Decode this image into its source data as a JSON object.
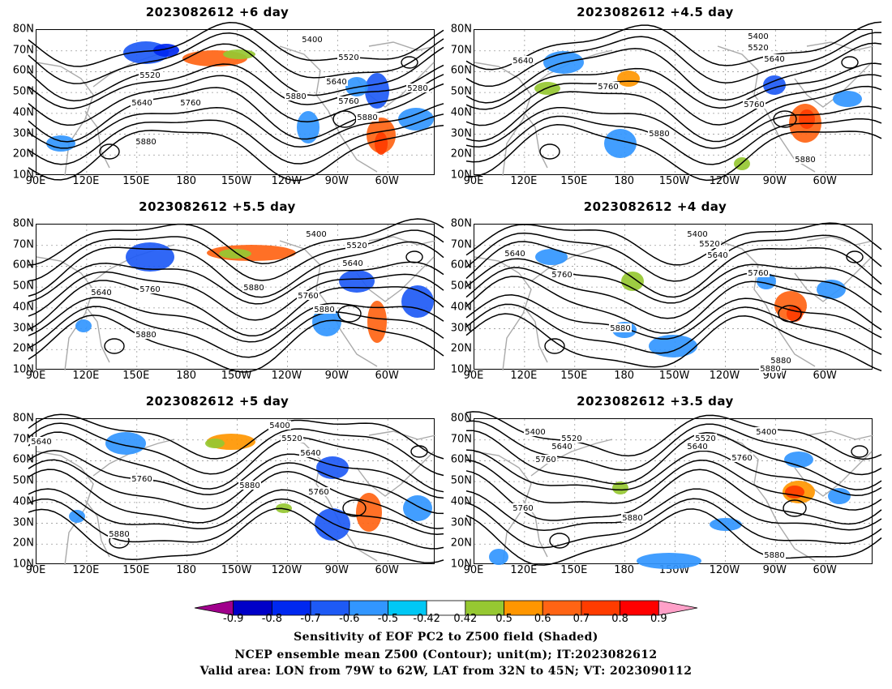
{
  "panels": [
    {
      "title": "2023082612 +6 day",
      "labels": [
        {
          "t": "5400",
          "x": 340,
          "y": 12
        },
        {
          "t": "5520",
          "x": 385,
          "y": 34
        },
        {
          "t": "5520",
          "x": 140,
          "y": 56
        },
        {
          "t": "5640",
          "x": 370,
          "y": 64
        },
        {
          "t": "5280",
          "x": 470,
          "y": 72
        },
        {
          "t": "5640",
          "x": 130,
          "y": 90
        },
        {
          "t": "5760",
          "x": 190,
          "y": 90
        },
        {
          "t": "5880",
          "x": 320,
          "y": 82
        },
        {
          "t": "5760",
          "x": 385,
          "y": 88
        },
        {
          "t": "5880",
          "x": 408,
          "y": 108
        },
        {
          "t": "5880",
          "x": 135,
          "y": 138
        }
      ]
    },
    {
      "title": "2023082612 +4.5 day",
      "labels": [
        {
          "t": "5400",
          "x": 350,
          "y": 8
        },
        {
          "t": "5520",
          "x": 350,
          "y": 22
        },
        {
          "t": "5640",
          "x": 60,
          "y": 38
        },
        {
          "t": "5640",
          "x": 370,
          "y": 36
        },
        {
          "t": "5760",
          "x": 165,
          "y": 70
        },
        {
          "t": "5760",
          "x": 345,
          "y": 92
        },
        {
          "t": "5880",
          "x": 228,
          "y": 128
        },
        {
          "t": "5880",
          "x": 408,
          "y": 160
        }
      ]
    },
    {
      "title": "2023082612 +5.5 day",
      "labels": [
        {
          "t": "5400",
          "x": 345,
          "y": 12
        },
        {
          "t": "5520",
          "x": 395,
          "y": 26
        },
        {
          "t": "5640",
          "x": 390,
          "y": 48
        },
        {
          "t": "5640",
          "x": 80,
          "y": 84
        },
        {
          "t": "5760",
          "x": 140,
          "y": 80
        },
        {
          "t": "5880",
          "x": 268,
          "y": 78
        },
        {
          "t": "5760",
          "x": 335,
          "y": 88
        },
        {
          "t": "5880",
          "x": 355,
          "y": 105
        },
        {
          "t": "5880",
          "x": 135,
          "y": 136
        }
      ]
    },
    {
      "title": "2023082612 +4 day",
      "labels": [
        {
          "t": "5400",
          "x": 275,
          "y": 12
        },
        {
          "t": "5520",
          "x": 290,
          "y": 24
        },
        {
          "t": "5640",
          "x": 300,
          "y": 38
        },
        {
          "t": "5640",
          "x": 50,
          "y": 36
        },
        {
          "t": "5760",
          "x": 108,
          "y": 62
        },
        {
          "t": "5760",
          "x": 350,
          "y": 60
        },
        {
          "t": "5880",
          "x": 180,
          "y": 128
        },
        {
          "t": "5880",
          "x": 378,
          "y": 168
        },
        {
          "t": "5880",
          "x": 365,
          "y": 178
        }
      ]
    },
    {
      "title": "2023082612 +5 day",
      "labels": [
        {
          "t": "5400",
          "x": 300,
          "y": 8
        },
        {
          "t": "5520",
          "x": 315,
          "y": 24
        },
        {
          "t": "5640",
          "x": 338,
          "y": 42
        },
        {
          "t": "5640",
          "x": 6,
          "y": 28
        },
        {
          "t": "5760",
          "x": 130,
          "y": 74
        },
        {
          "t": "5880",
          "x": 263,
          "y": 82
        },
        {
          "t": "5760",
          "x": 348,
          "y": 90
        },
        {
          "t": "5880",
          "x": 102,
          "y": 142
        }
      ]
    },
    {
      "title": "2023082612 +3.5 day",
      "labels": [
        {
          "t": "5400",
          "x": 75,
          "y": 16
        },
        {
          "t": "5520",
          "x": 120,
          "y": 24
        },
        {
          "t": "5640",
          "x": 108,
          "y": 34
        },
        {
          "t": "5520",
          "x": 285,
          "y": 24
        },
        {
          "t": "5640",
          "x": 275,
          "y": 34
        },
        {
          "t": "5400",
          "x": 360,
          "y": 16
        },
        {
          "t": "5760",
          "x": 88,
          "y": 50
        },
        {
          "t": "5760",
          "x": 330,
          "y": 48
        },
        {
          "t": "5760",
          "x": 60,
          "y": 110
        },
        {
          "t": "5880",
          "x": 195,
          "y": 122
        },
        {
          "t": "5880",
          "x": 370,
          "y": 168
        }
      ]
    }
  ],
  "lat_ticks": [
    "80N",
    "70N",
    "60N",
    "50N",
    "40N",
    "30N",
    "20N",
    "10N"
  ],
  "lon_ticks": [
    "90E",
    "120E",
    "150E",
    "180",
    "150W",
    "120W",
    "90W",
    "60W"
  ],
  "colorbar": {
    "labels": [
      "-0.9",
      "-0.8",
      "-0.7",
      "-0.6",
      "-0.5",
      "-0.42",
      "0.42",
      "0.5",
      "0.6",
      "0.7",
      "0.8",
      "0.9"
    ],
    "colors": [
      "#a0008c",
      "#0000c8",
      "#0028f0",
      "#1e5af5",
      "#3296ff",
      "#00c8f5",
      "#ffffff",
      "#96c832",
      "#ff9600",
      "#ff6414",
      "#ff3c00",
      "#ff0000",
      "#ffa0c8"
    ]
  },
  "caption": {
    "line1": "Sensitivity of EOF PC2 to Z500 field (Shaded)",
    "line2": "NCEP ensemble mean Z500 (Contour); unit(m); IT:2023082612",
    "line3": "Valid area: LON from 79W to 62W, LAT from 32N to 45N; VT: 2023090112"
  }
}
